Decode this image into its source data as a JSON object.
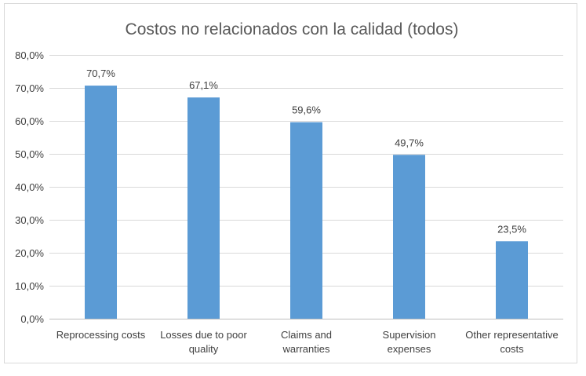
{
  "chart_data": {
    "type": "bar",
    "title": "Costos no relacionados con la calidad (todos)",
    "categories": [
      [
        "Reprocessing costs"
      ],
      [
        "Losses due to poor",
        "quality"
      ],
      [
        "Claims and",
        "warranties"
      ],
      [
        "Supervision",
        "expenses"
      ],
      [
        "Other representative",
        "costs"
      ]
    ],
    "values": [
      70.7,
      67.1,
      59.6,
      49.7,
      23.5
    ],
    "data_labels": [
      "70,7%",
      "67,1%",
      "59,6%",
      "49,7%",
      "23,5%"
    ],
    "ylim": [
      0,
      80
    ],
    "yticks": [
      0,
      10,
      20,
      30,
      40,
      50,
      60,
      70,
      80
    ],
    "ytick_labels": [
      "0,0%",
      "10,0%",
      "20,0%",
      "30,0%",
      "40,0%",
      "50,0%",
      "60,0%",
      "70,0%",
      "80,0%"
    ],
    "bar_color": "#5b9bd5",
    "grid": true,
    "legend": "none"
  }
}
